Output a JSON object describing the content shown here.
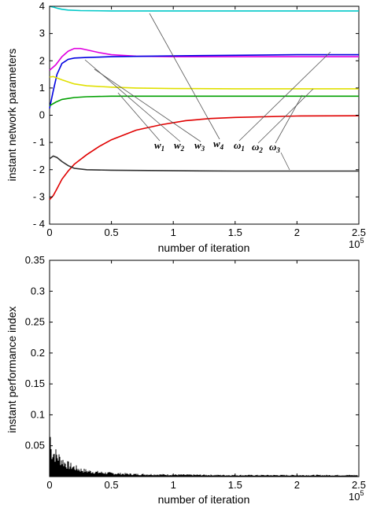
{
  "chart_data": [
    {
      "type": "line",
      "xlabel": "number of iteration",
      "ylabel": "instant network parameters",
      "x_scale_label": "10",
      "x_scale_exp": "5",
      "xlim": [
        0,
        2.5
      ],
      "ylim": [
        -4,
        4
      ],
      "xticks": [
        "0",
        "0.5",
        "1",
        "1.5",
        "2",
        "2.5"
      ],
      "yticks": [
        "4",
        "3",
        "2",
        "1",
        "0",
        "- 1",
        "- 2",
        "- 3",
        "- 4"
      ],
      "grid": false,
      "annotations": [
        {
          "base": "w",
          "sub": "1"
        },
        {
          "base": "w",
          "sub": "2"
        },
        {
          "base": "w",
          "sub": "3"
        },
        {
          "base": "w",
          "sub": "4"
        },
        {
          "base": "ω",
          "sub": "1"
        },
        {
          "base": "ω",
          "sub": "2"
        },
        {
          "base": "ω",
          "sub": "3"
        }
      ],
      "series": [
        {
          "color": "#00c8c8",
          "x": [
            0,
            0.03,
            0.06,
            0.1,
            0.15,
            0.25,
            0.5,
            1.0,
            1.5,
            2.0,
            2.5
          ],
          "y": [
            4.0,
            3.97,
            3.93,
            3.89,
            3.86,
            3.84,
            3.83,
            3.83,
            3.83,
            3.83,
            3.83
          ]
        },
        {
          "color": "#e000e0",
          "x": [
            0,
            0.05,
            0.1,
            0.15,
            0.2,
            0.25,
            0.3,
            0.4,
            0.5,
            0.7,
            1.0,
            1.5,
            2.0,
            2.5
          ],
          "y": [
            1.65,
            1.85,
            2.15,
            2.35,
            2.45,
            2.45,
            2.4,
            2.3,
            2.22,
            2.17,
            2.15,
            2.15,
            2.15,
            2.15
          ]
        },
        {
          "color": "#0000e0",
          "x": [
            0,
            0.03,
            0.06,
            0.1,
            0.15,
            0.2,
            0.3,
            0.5,
            0.8,
            1.0,
            1.5,
            2.0,
            2.5
          ],
          "y": [
            0.25,
            0.9,
            1.5,
            1.9,
            2.05,
            2.1,
            2.12,
            2.15,
            2.17,
            2.18,
            2.2,
            2.22,
            2.22
          ]
        },
        {
          "color": "#e0e000",
          "x": [
            0,
            0.03,
            0.1,
            0.2,
            0.3,
            0.5,
            0.7,
            1.0,
            1.5,
            2.0,
            2.5
          ],
          "y": [
            1.4,
            1.42,
            1.3,
            1.15,
            1.08,
            1.03,
            1.0,
            0.98,
            0.97,
            0.97,
            0.97
          ]
        },
        {
          "color": "#00a000",
          "x": [
            0,
            0.05,
            0.1,
            0.2,
            0.3,
            0.5,
            0.7,
            1.0,
            1.5,
            2.0,
            2.5
          ],
          "y": [
            0.35,
            0.48,
            0.58,
            0.65,
            0.68,
            0.7,
            0.7,
            0.7,
            0.7,
            0.7,
            0.7
          ]
        },
        {
          "color": "#e00000",
          "x": [
            0,
            0.03,
            0.06,
            0.1,
            0.15,
            0.2,
            0.3,
            0.4,
            0.5,
            0.7,
            0.9,
            1.1,
            1.3,
            1.5,
            2.0,
            2.5
          ],
          "y": [
            -3.1,
            -2.95,
            -2.7,
            -2.35,
            -2.05,
            -1.8,
            -1.45,
            -1.15,
            -0.9,
            -0.55,
            -0.35,
            -0.2,
            -0.12,
            -0.08,
            -0.03,
            -0.02
          ]
        },
        {
          "color": "#303030",
          "x": [
            0,
            0.03,
            0.06,
            0.1,
            0.15,
            0.2,
            0.3,
            0.5,
            0.8,
            1.0,
            1.5,
            2.0,
            2.5
          ],
          "y": [
            -1.6,
            -1.5,
            -1.55,
            -1.7,
            -1.85,
            -1.95,
            -2.0,
            -2.02,
            -2.03,
            -2.04,
            -2.05,
            -2.05,
            -2.05
          ]
        }
      ]
    },
    {
      "type": "bar",
      "xlabel": "number of iteration",
      "ylabel": "instant performance index",
      "x_scale_label": "10",
      "x_scale_exp": "5",
      "xlim": [
        0,
        2.5
      ],
      "ylim": [
        0,
        0.35
      ],
      "xticks": [
        "0",
        "0.5",
        "1",
        "1.5",
        "2",
        "2.5"
      ],
      "yticks": [
        "0.35",
        "0.3",
        "0.25",
        "0.2",
        "0.15",
        "0.1",
        "0.05"
      ],
      "grid": false,
      "color": "#000000",
      "envelope_x": [
        0,
        0.005,
        0.01,
        0.02,
        0.04,
        0.06,
        0.08,
        0.1,
        0.12,
        0.15,
        0.2,
        0.25,
        0.3,
        0.4,
        0.5,
        0.7,
        1.0,
        1.5,
        2.0,
        2.5
      ],
      "envelope_y": [
        0.12,
        0.1,
        0.06,
        0.055,
        0.05,
        0.045,
        0.04,
        0.035,
        0.03,
        0.025,
        0.02,
        0.015,
        0.012,
        0.009,
        0.007,
        0.005,
        0.004,
        0.003,
        0.003,
        0.003
      ]
    }
  ]
}
